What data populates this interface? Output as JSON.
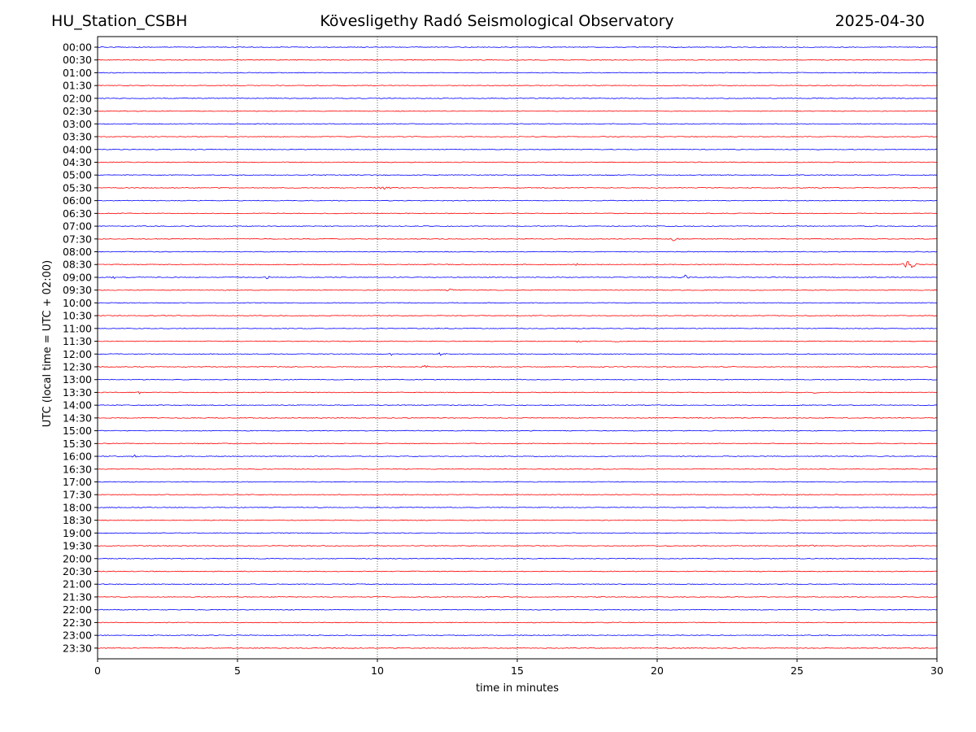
{
  "header": {
    "station": "HU_Station_CSBH",
    "observatory": "Kövesligethy Radó Seismological Observatory",
    "date": "2025-04-30"
  },
  "chart_data": {
    "type": "line",
    "title": "Kövesligethy Radó Seismological Observatory",
    "xlabel": "time in minutes",
    "ylabel": "UTC (local time = UTC + 02:00)",
    "xlim": [
      0,
      30
    ],
    "x_ticks": [
      0,
      5,
      10,
      15,
      20,
      25,
      30
    ],
    "grid": "vertical dotted lines at every 5 minutes",
    "trace_colors": [
      "#0000ff",
      "#ff0000"
    ],
    "row_labels": [
      "00:00",
      "00:30",
      "01:00",
      "01:30",
      "02:00",
      "02:30",
      "03:00",
      "03:30",
      "04:00",
      "04:30",
      "05:00",
      "05:30",
      "06:00",
      "06:30",
      "07:00",
      "07:30",
      "08:00",
      "08:30",
      "09:00",
      "09:30",
      "10:00",
      "10:30",
      "11:00",
      "11:30",
      "12:00",
      "12:30",
      "13:00",
      "13:30",
      "14:00",
      "14:30",
      "15:00",
      "15:30",
      "16:00",
      "16:30",
      "17:00",
      "17:30",
      "18:00",
      "18:30",
      "19:00",
      "19:30",
      "20:00",
      "20:30",
      "21:00",
      "21:30",
      "22:00",
      "22:30",
      "23:00",
      "23:30"
    ],
    "events": [
      {
        "row": "05:30",
        "start_min": 9.7,
        "end_min": 10.8,
        "amplitude": 1.3
      },
      {
        "row": "07:00",
        "start_min": 27.6,
        "end_min": 27.9,
        "amplitude": 1.6
      },
      {
        "row": "07:30",
        "start_min": 20.4,
        "end_min": 20.8,
        "amplitude": 2.2
      },
      {
        "row": "08:30",
        "start_min": 16.9,
        "end_min": 17.3,
        "amplitude": 1.8
      },
      {
        "row": "08:30",
        "start_min": 28.7,
        "end_min": 29.4,
        "amplitude": 5.5
      },
      {
        "row": "09:00",
        "start_min": 0.5,
        "end_min": 0.7,
        "amplitude": 2.0
      },
      {
        "row": "09:00",
        "start_min": 5.9,
        "end_min": 6.2,
        "amplitude": 1.8
      },
      {
        "row": "09:00",
        "start_min": 20.8,
        "end_min": 21.2,
        "amplitude": 3.0
      },
      {
        "row": "09:30",
        "start_min": 12.4,
        "end_min": 12.8,
        "amplitude": 1.2
      },
      {
        "row": "11:30",
        "start_min": 17.0,
        "end_min": 17.4,
        "amplitude": 1.2
      },
      {
        "row": "11:30",
        "start_min": 18.4,
        "end_min": 18.8,
        "amplitude": 1.0
      },
      {
        "row": "12:00",
        "start_min": 10.4,
        "end_min": 10.6,
        "amplitude": 1.8
      },
      {
        "row": "12:00",
        "start_min": 12.0,
        "end_min": 12.6,
        "amplitude": 1.5
      },
      {
        "row": "12:00",
        "start_min": 22.0,
        "end_min": 22.2,
        "amplitude": 1.2
      },
      {
        "row": "12:30",
        "start_min": 11.5,
        "end_min": 11.9,
        "amplitude": 1.3
      },
      {
        "row": "13:30",
        "start_min": 1.4,
        "end_min": 1.6,
        "amplitude": 1.4
      },
      {
        "row": "13:30",
        "start_min": 25.5,
        "end_min": 25.8,
        "amplitude": 1.4
      },
      {
        "row": "16:00",
        "start_min": 1.2,
        "end_min": 1.5,
        "amplitude": 1.6
      },
      {
        "row": "19:30",
        "start_min": 25.4,
        "end_min": 25.7,
        "amplitude": 1.2
      }
    ]
  }
}
